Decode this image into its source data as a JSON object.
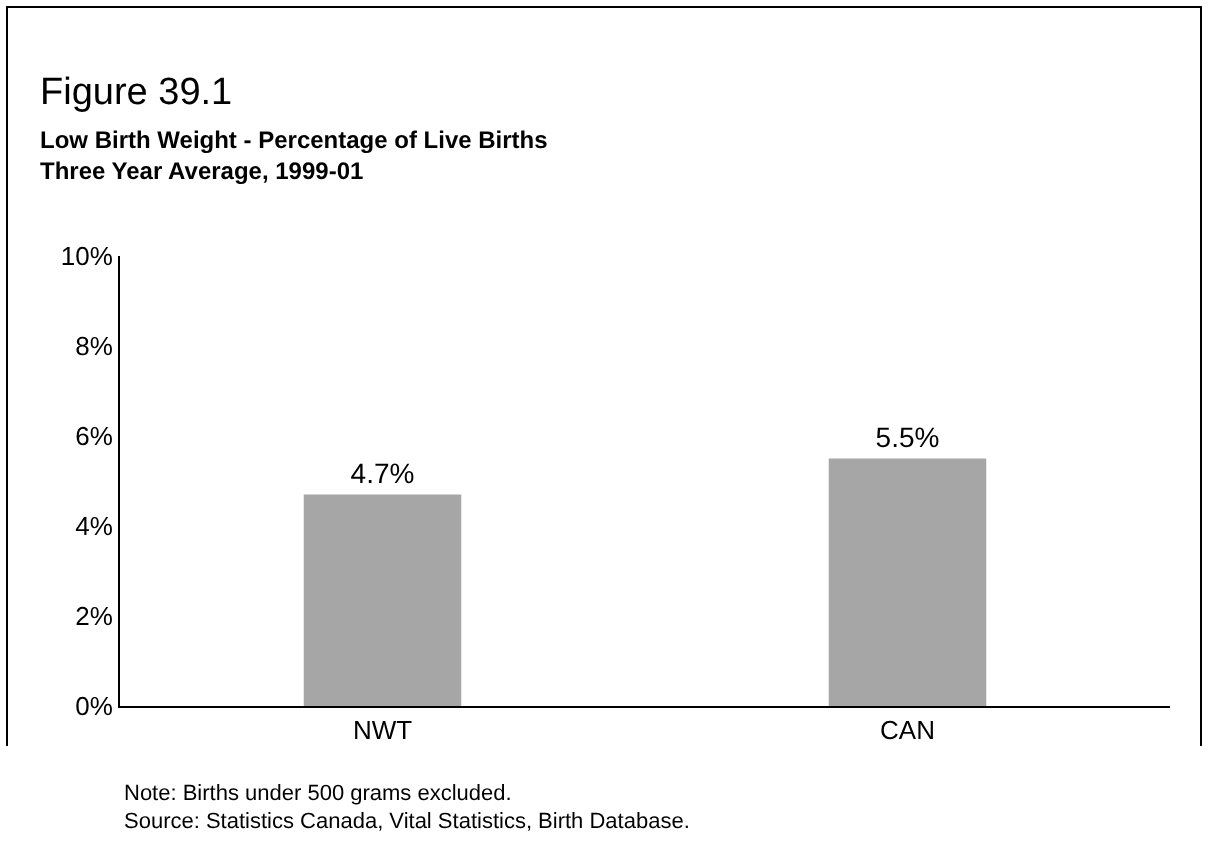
{
  "chart_data": {
    "type": "bar",
    "title": "Figure 39.1",
    "subtitle": "Low Birth Weight - Percentage of Live Births\nThree Year Average, 1999-01",
    "categories": [
      "NWT",
      "CAN"
    ],
    "values": [
      4.7,
      5.5
    ],
    "color": "#a6a6a6",
    "value_labels": [
      "4.7%",
      "5.5%"
    ],
    "ylim": [
      0,
      10
    ],
    "yticks": [
      {
        "value": 0,
        "label": "0%"
      },
      {
        "value": 2,
        "label": "2%"
      },
      {
        "value": 4,
        "label": "4%"
      },
      {
        "value": 6,
        "label": "6%"
      },
      {
        "value": 8,
        "label": "8%"
      },
      {
        "value": 10,
        "label": "10%"
      }
    ],
    "grid": false,
    "annotations": [
      "Note: Births under 500 grams excluded.",
      "Source: Statistics Canada, Vital Statistics, Birth Database."
    ]
  }
}
